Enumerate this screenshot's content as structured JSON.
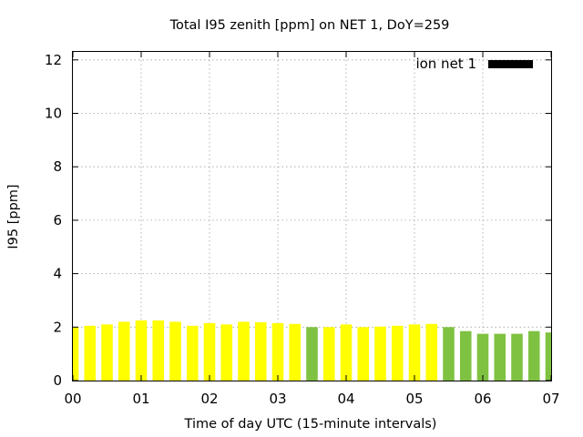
{
  "chart_data": {
    "type": "bar",
    "title": "Total I95 zenith [ppm] on NET 1, DoY=259",
    "xlabel": "Time of day UTC (15-minute intervals)",
    "ylabel": "I95 [ppm]",
    "xlim": [
      0,
      7
    ],
    "ylim": [
      0,
      12.3
    ],
    "x_ticks": [
      "00",
      "01",
      "02",
      "03",
      "04",
      "05",
      "06",
      "07"
    ],
    "y_ticks": [
      "0",
      "2",
      "4",
      "6",
      "8",
      "10",
      "12"
    ],
    "grid": true,
    "legend": {
      "position": "top-right",
      "entries": [
        {
          "name": "ion net 1",
          "color": "#000000"
        }
      ]
    },
    "colors": {
      "yellow": "#ffff00",
      "green": "#7fc241"
    },
    "bar_interval_hours": 0.25,
    "bars": [
      {
        "time": 0.0,
        "value": 2.0,
        "color": "#ffff00"
      },
      {
        "time": 0.25,
        "value": 2.05,
        "color": "#ffff00"
      },
      {
        "time": 0.5,
        "value": 2.1,
        "color": "#ffff00"
      },
      {
        "time": 0.75,
        "value": 2.2,
        "color": "#ffff00"
      },
      {
        "time": 1.0,
        "value": 2.25,
        "color": "#ffff00"
      },
      {
        "time": 1.25,
        "value": 2.25,
        "color": "#ffff00"
      },
      {
        "time": 1.5,
        "value": 2.2,
        "color": "#ffff00"
      },
      {
        "time": 1.75,
        "value": 2.05,
        "color": "#ffff00"
      },
      {
        "time": 2.0,
        "value": 2.15,
        "color": "#ffff00"
      },
      {
        "time": 2.25,
        "value": 2.1,
        "color": "#ffff00"
      },
      {
        "time": 2.5,
        "value": 2.2,
        "color": "#ffff00"
      },
      {
        "time": 2.75,
        "value": 2.18,
        "color": "#ffff00"
      },
      {
        "time": 3.0,
        "value": 2.15,
        "color": "#ffff00"
      },
      {
        "time": 3.25,
        "value": 2.12,
        "color": "#ffff00"
      },
      {
        "time": 3.5,
        "value": 2.0,
        "color": "#7fc241"
      },
      {
        "time": 3.75,
        "value": 2.0,
        "color": "#ffff00"
      },
      {
        "time": 4.0,
        "value": 2.1,
        "color": "#ffff00"
      },
      {
        "time": 4.25,
        "value": 2.0,
        "color": "#ffff00"
      },
      {
        "time": 4.5,
        "value": 2.02,
        "color": "#ffff00"
      },
      {
        "time": 4.75,
        "value": 2.05,
        "color": "#ffff00"
      },
      {
        "time": 5.0,
        "value": 2.1,
        "color": "#ffff00"
      },
      {
        "time": 5.25,
        "value": 2.12,
        "color": "#ffff00"
      },
      {
        "time": 5.5,
        "value": 2.0,
        "color": "#7fc241"
      },
      {
        "time": 5.75,
        "value": 1.85,
        "color": "#7fc241"
      },
      {
        "time": 6.0,
        "value": 1.75,
        "color": "#7fc241"
      },
      {
        "time": 6.25,
        "value": 1.75,
        "color": "#7fc241"
      },
      {
        "time": 6.5,
        "value": 1.75,
        "color": "#7fc241"
      },
      {
        "time": 6.75,
        "value": 1.85,
        "color": "#7fc241"
      },
      {
        "time": 7.0,
        "value": 1.8,
        "color": "#7fc241"
      }
    ]
  }
}
